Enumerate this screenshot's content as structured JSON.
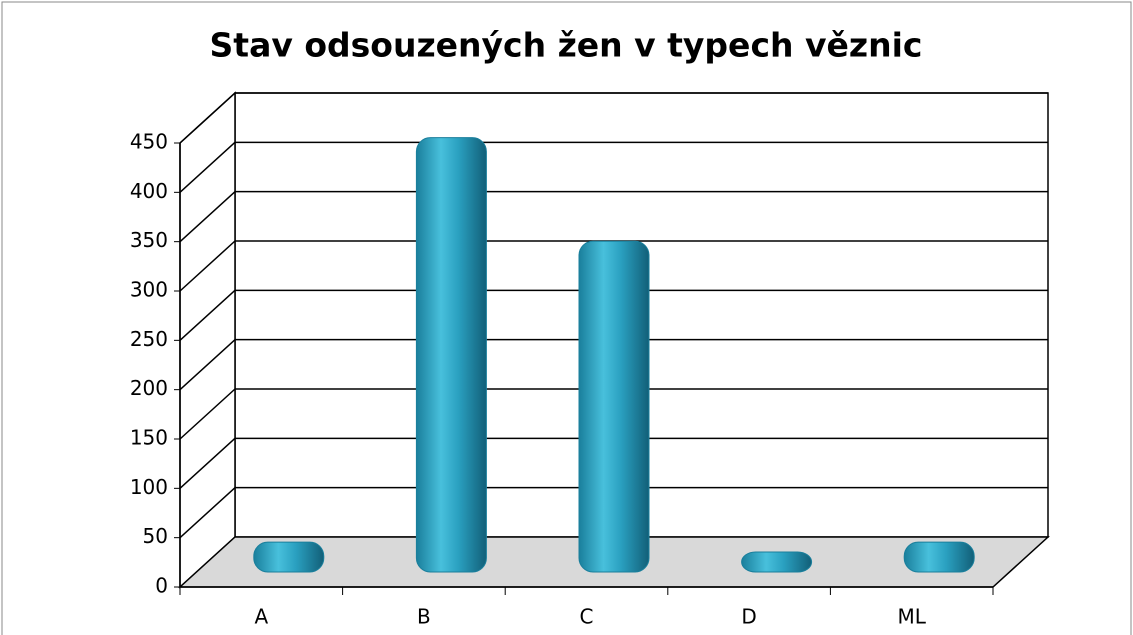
{
  "chart_data": {
    "type": "bar",
    "title": "Stav odsouzených žen v typech věznic",
    "categories": [
      "A",
      "B",
      "C",
      "D",
      "ML"
    ],
    "values": [
      10,
      420,
      315,
      0,
      10
    ],
    "color": "#2aa0c0",
    "ylim": [
      0,
      450
    ],
    "yticks": [
      0,
      50,
      100,
      150,
      200,
      250,
      300,
      350,
      400,
      450
    ],
    "grid": true
  }
}
